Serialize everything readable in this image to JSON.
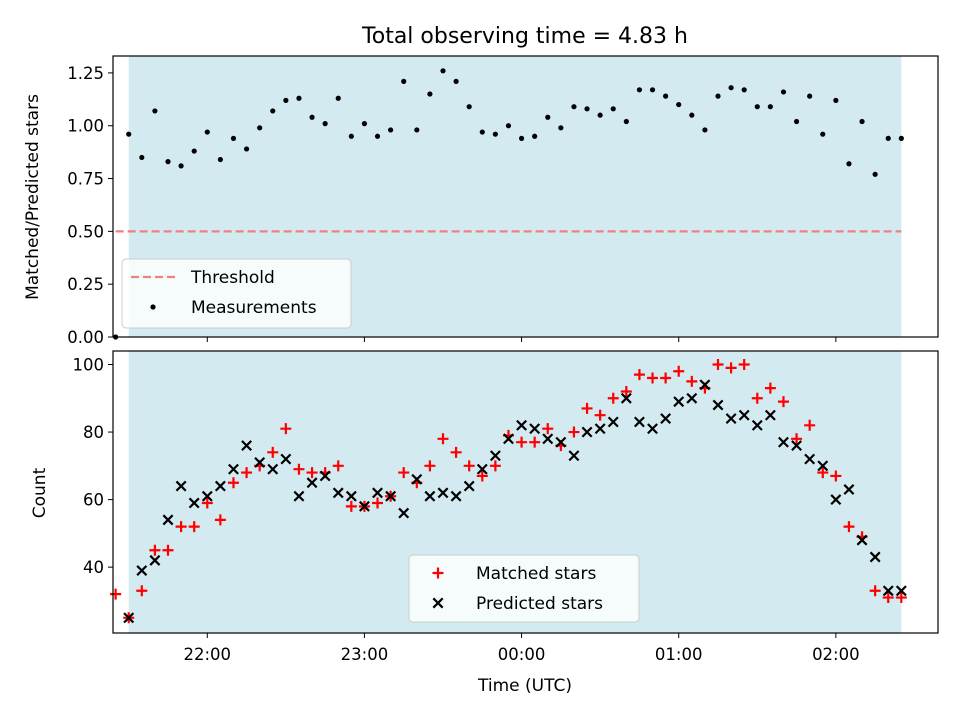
{
  "figure": {
    "title": "Total observing time = 4.83 h"
  },
  "chart_data": [
    {
      "type": "scatter",
      "title": "Total observing time = 4.83 h",
      "xlabel": "",
      "ylabel": "Matched/Predicted stars",
      "xlim": [
        21.4,
        2.65
      ],
      "ylim": [
        0,
        1.33
      ],
      "yticks": [
        "0.00",
        "0.25",
        "0.50",
        "0.75",
        "1.00",
        "1.25"
      ],
      "shaded_x_range": [
        "21:30",
        "02:25"
      ],
      "shade_color": "#d3eaf0",
      "grid": false,
      "legend": {
        "placement": "lower-left",
        "entries": [
          "Threshold",
          "Measurements"
        ]
      },
      "threshold": {
        "name": "Threshold",
        "y": 0.5,
        "x_range": [
          "21:25",
          "02:25"
        ],
        "color": "#f08080",
        "style": "dashed"
      },
      "series": [
        {
          "name": "Measurements",
          "marker": "dot",
          "color": "#000000",
          "x": [
            "21:25",
            "21:30",
            "21:35",
            "21:40",
            "21:45",
            "21:50",
            "21:55",
            "22:00",
            "22:05",
            "22:10",
            "22:15",
            "22:20",
            "22:25",
            "22:30",
            "22:35",
            "22:40",
            "22:45",
            "22:50",
            "22:55",
            "23:00",
            "23:05",
            "23:10",
            "23:15",
            "23:20",
            "23:25",
            "23:30",
            "23:35",
            "23:40",
            "23:45",
            "23:50",
            "23:55",
            "00:00",
            "00:05",
            "00:10",
            "00:15",
            "00:20",
            "00:25",
            "00:30",
            "00:35",
            "00:40",
            "00:45",
            "00:50",
            "00:55",
            "01:00",
            "01:05",
            "01:10",
            "01:15",
            "01:20",
            "01:25",
            "01:30",
            "01:35",
            "01:40",
            "01:45",
            "01:50",
            "01:55",
            "02:00",
            "02:05",
            "02:10",
            "02:15",
            "02:20",
            "02:25"
          ],
          "y": [
            0.0,
            0.96,
            0.85,
            1.07,
            0.83,
            0.81,
            0.88,
            0.97,
            0.84,
            0.94,
            0.89,
            0.99,
            1.07,
            1.12,
            1.13,
            1.04,
            1.01,
            1.13,
            0.95,
            1.01,
            0.95,
            0.98,
            1.21,
            0.98,
            1.15,
            1.26,
            1.21,
            1.09,
            0.97,
            0.96,
            1.0,
            0.94,
            0.95,
            1.04,
            0.99,
            1.09,
            1.08,
            1.05,
            1.08,
            1.02,
            1.17,
            1.17,
            1.14,
            1.1,
            1.05,
            0.98,
            1.14,
            1.18,
            1.17,
            1.09,
            1.09,
            1.16,
            1.02,
            1.14,
            0.96,
            1.12,
            0.82,
            1.02,
            0.77,
            0.94,
            0.94
          ]
        }
      ]
    },
    {
      "type": "scatter",
      "title": "",
      "xlabel": "Time (UTC)",
      "ylabel": "Count",
      "xlim": [
        21.4,
        2.65
      ],
      "ylim": [
        20.5,
        104
      ],
      "yticks": [
        "40",
        "60",
        "80",
        "100"
      ],
      "xticks": [
        "22:00",
        "23:00",
        "00:00",
        "01:00",
        "02:00"
      ],
      "shaded_x_range": [
        "21:30",
        "02:25"
      ],
      "shade_color": "#d3eaf0",
      "grid": false,
      "legend": {
        "placement": "lower-center",
        "entries": [
          "Matched stars",
          "Predicted stars"
        ]
      },
      "series": [
        {
          "name": "Matched stars",
          "marker": "plus",
          "color": "#ff0000",
          "x": [
            "21:25",
            "21:30",
            "21:35",
            "21:40",
            "21:45",
            "21:50",
            "21:55",
            "22:00",
            "22:05",
            "22:10",
            "22:15",
            "22:20",
            "22:25",
            "22:30",
            "22:35",
            "22:40",
            "22:45",
            "22:50",
            "22:55",
            "23:00",
            "23:05",
            "23:10",
            "23:15",
            "23:20",
            "23:25",
            "23:30",
            "23:35",
            "23:40",
            "23:45",
            "23:50",
            "23:55",
            "00:00",
            "00:05",
            "00:10",
            "00:15",
            "00:20",
            "00:25",
            "00:30",
            "00:35",
            "00:40",
            "00:45",
            "00:50",
            "00:55",
            "01:00",
            "01:05",
            "01:10",
            "01:15",
            "01:20",
            "01:25",
            "01:30",
            "01:35",
            "01:40",
            "01:45",
            "01:50",
            "01:55",
            "02:00",
            "02:05",
            "02:10",
            "02:15",
            "02:20",
            "02:25"
          ],
          "y": [
            32,
            25,
            33,
            45,
            45,
            52,
            52,
            59,
            54,
            65,
            68,
            70,
            74,
            81,
            69,
            68,
            68,
            70,
            58,
            58,
            59,
            61,
            68,
            65,
            70,
            78,
            74,
            70,
            67,
            70,
            79,
            77,
            77,
            81,
            76,
            80,
            87,
            85,
            90,
            92,
            97,
            96,
            96,
            98,
            95,
            93,
            100,
            99,
            100,
            90,
            93,
            89,
            78,
            82,
            68,
            67,
            52,
            49,
            33,
            31,
            31
          ]
        },
        {
          "name": "Predicted stars",
          "marker": "x",
          "color": "#000000",
          "x": [
            "21:30",
            "21:35",
            "21:40",
            "21:45",
            "21:50",
            "21:55",
            "22:00",
            "22:05",
            "22:10",
            "22:15",
            "22:20",
            "22:25",
            "22:30",
            "22:35",
            "22:40",
            "22:45",
            "22:50",
            "22:55",
            "23:00",
            "23:05",
            "23:10",
            "23:15",
            "23:20",
            "23:25",
            "23:30",
            "23:35",
            "23:40",
            "23:45",
            "23:50",
            "23:55",
            "00:00",
            "00:05",
            "00:10",
            "00:15",
            "00:20",
            "00:25",
            "00:30",
            "00:35",
            "00:40",
            "00:45",
            "00:50",
            "00:55",
            "01:00",
            "01:05",
            "01:10",
            "01:15",
            "01:20",
            "01:25",
            "01:30",
            "01:35",
            "01:40",
            "01:45",
            "01:50",
            "01:55",
            "02:00",
            "02:05",
            "02:10",
            "02:15",
            "02:20",
            "02:25"
          ],
          "y": [
            25,
            39,
            42,
            54,
            64,
            59,
            61,
            64,
            69,
            76,
            71,
            69,
            72,
            61,
            65,
            67,
            62,
            61,
            58,
            62,
            61,
            56,
            66,
            61,
            62,
            61,
            64,
            69,
            73,
            78,
            82,
            81,
            78,
            77,
            73,
            80,
            81,
            83,
            90,
            83,
            81,
            84,
            89,
            90,
            94,
            88,
            84,
            85,
            82,
            85,
            77,
            76,
            72,
            70,
            60,
            63,
            48,
            43,
            33,
            33
          ]
        }
      ]
    }
  ]
}
